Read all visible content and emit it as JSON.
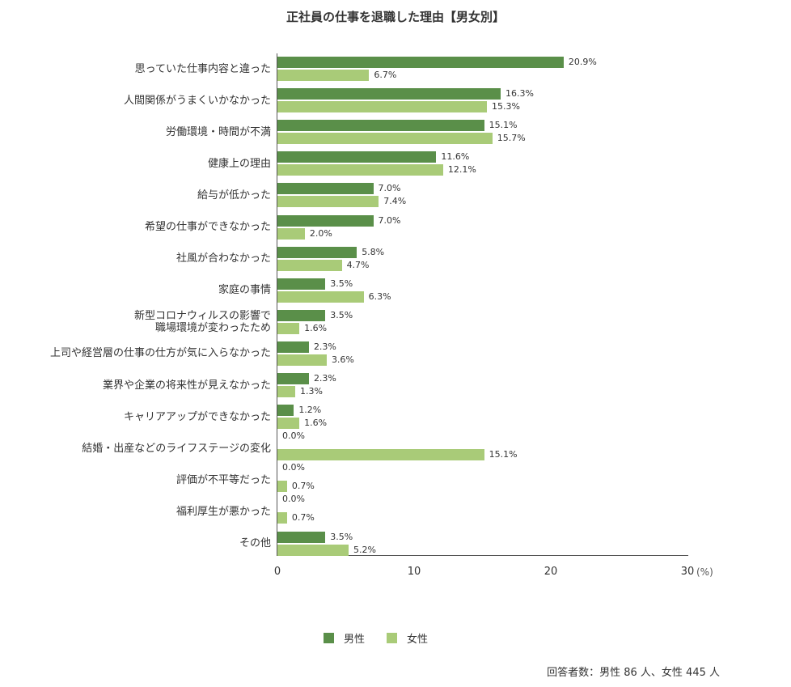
{
  "title": "正社員の仕事を退職した理由【男女別】",
  "colors": {
    "male": "#5a8f49",
    "female": "#a9cb78"
  },
  "axis": {
    "ticks": [
      "0",
      "10",
      "20",
      "30"
    ],
    "unit": "(%)"
  },
  "legend": {
    "male": "男性",
    "female": "女性"
  },
  "note": "回答者数：男性 86 人、女性 445 人",
  "rows": [
    {
      "label": "思っていた仕事内容と違った",
      "male": 20.9,
      "female": 6.7,
      "male_label": "20.9%",
      "female_label": "6.7%"
    },
    {
      "label": "人間関係がうまくいかなかった",
      "male": 16.3,
      "female": 15.3,
      "male_label": "16.3%",
      "female_label": "15.3%"
    },
    {
      "label": "労働環境・時間が不満",
      "male": 15.1,
      "female": 15.7,
      "male_label": "15.1%",
      "female_label": "15.7%"
    },
    {
      "label": "健康上の理由",
      "male": 11.6,
      "female": 12.1,
      "male_label": "11.6%",
      "female_label": "12.1%"
    },
    {
      "label": "給与が低かった",
      "male": 7.0,
      "female": 7.4,
      "male_label": "7.0%",
      "female_label": "7.4%"
    },
    {
      "label": "希望の仕事ができなかった",
      "male": 7.0,
      "female": 2.0,
      "male_label": "7.0%",
      "female_label": "2.0%"
    },
    {
      "label": "社風が合わなかった",
      "male": 5.8,
      "female": 4.7,
      "male_label": "5.8%",
      "female_label": "4.7%"
    },
    {
      "label": "家庭の事情",
      "male": 3.5,
      "female": 6.3,
      "male_label": "3.5%",
      "female_label": "6.3%"
    },
    {
      "label": "新型コロナウィルスの影響で\n職場環境が変わったため",
      "male": 3.5,
      "female": 1.6,
      "male_label": "3.5%",
      "female_label": "1.6%"
    },
    {
      "label": "上司や経営層の仕事の仕方が気に入らなかった",
      "male": 2.3,
      "female": 3.6,
      "male_label": "2.3%",
      "female_label": "3.6%"
    },
    {
      "label": "業界や企業の将来性が見えなかった",
      "male": 2.3,
      "female": 1.3,
      "male_label": "2.3%",
      "female_label": "1.3%"
    },
    {
      "label": "キャリアアップができなかった",
      "male": 1.2,
      "female": 1.6,
      "male_label": "1.2%",
      "female_label": "1.6%"
    },
    {
      "label": "結婚・出産などのライフステージの変化",
      "male": 0.0,
      "female": 15.1,
      "male_label": "0.0%",
      "female_label": "15.1%"
    },
    {
      "label": "評価が不平等だった",
      "male": 0.0,
      "female": 0.7,
      "male_label": "0.0%",
      "female_label": "0.7%"
    },
    {
      "label": "福利厚生が悪かった",
      "male": 0.0,
      "female": 0.7,
      "male_label": "0.0%",
      "female_label": "0.7%"
    },
    {
      "label": "その他",
      "male": 3.5,
      "female": 5.2,
      "male_label": "3.5%",
      "female_label": "5.2%"
    }
  ],
  "chart_data": {
    "type": "bar",
    "orientation": "horizontal",
    "title": "正社員の仕事を退職した理由【男女別】",
    "xlabel": "(%)",
    "ylabel": "",
    "xlim": [
      0,
      30
    ],
    "xticks": [
      0,
      10,
      20,
      30
    ],
    "grid": false,
    "legend_position": "bottom",
    "categories": [
      "思っていた仕事内容と違った",
      "人間関係がうまくいかなかった",
      "労働環境・時間が不満",
      "健康上の理由",
      "給与が低かった",
      "希望の仕事ができなかった",
      "社風が合わなかった",
      "家庭の事情",
      "新型コロナウィルスの影響で職場環境が変わったため",
      "上司や経営層の仕事の仕方が気に入らなかった",
      "業界や企業の将来性が見えなかった",
      "キャリアアップができなかった",
      "結婚・出産などのライフステージの変化",
      "評価が不平等だった",
      "福利厚生が悪かった",
      "その他"
    ],
    "series": [
      {
        "name": "男性",
        "color": "#5a8f49",
        "values": [
          20.9,
          16.3,
          15.1,
          11.6,
          7.0,
          7.0,
          5.8,
          3.5,
          3.5,
          2.3,
          2.3,
          1.2,
          0.0,
          0.0,
          0.0,
          3.5
        ]
      },
      {
        "name": "女性",
        "color": "#a9cb78",
        "values": [
          6.7,
          15.3,
          15.7,
          12.1,
          7.4,
          2.0,
          4.7,
          6.3,
          1.6,
          3.6,
          1.3,
          1.6,
          15.1,
          0.7,
          0.7,
          5.2
        ]
      }
    ],
    "annotations": [
      "回答者数：男性 86 人、女性 445 人"
    ]
  }
}
